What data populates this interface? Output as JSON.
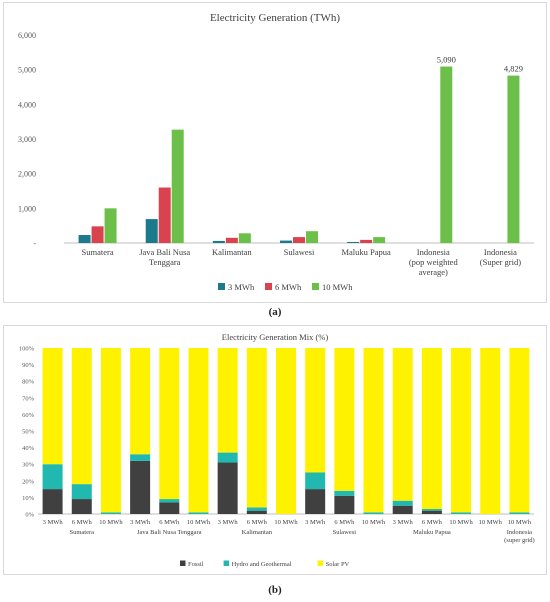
{
  "captions": {
    "a": "(a)",
    "b": "(b)"
  },
  "chart_data": [
    {
      "type": "bar",
      "title": "Electricity Generation (TWh)",
      "categories": [
        "Sumatera",
        "Java Bali Nusa Tenggara",
        "Kalimantan",
        "Sulawesi",
        "Maluku Papua",
        "Indonesia (pop weighted average)",
        "Indonesia (Super grid)"
      ],
      "category_lines": [
        [
          "Sumatera"
        ],
        [
          "Java Bali Nusa",
          "Tenggara"
        ],
        [
          "Kalimantan"
        ],
        [
          "Sulawesi"
        ],
        [
          "Maluku Papua"
        ],
        [
          "Indonesia",
          "(pop weighted",
          "average)"
        ],
        [
          "Indonesia",
          "(Super grid)"
        ]
      ],
      "series": [
        {
          "name": "3 MWh",
          "color": "#1b7a8c",
          "values": [
            230,
            690,
            60,
            70,
            30,
            null,
            null
          ]
        },
        {
          "name": "6 MWh",
          "color": "#d9434f",
          "values": [
            480,
            1600,
            150,
            170,
            90,
            null,
            null
          ]
        },
        {
          "name": "10 MWh",
          "color": "#6cc04a",
          "values": [
            1000,
            3270,
            280,
            340,
            170,
            5090,
            4829
          ]
        }
      ],
      "data_labels": [
        {
          "category": 5,
          "series": 2,
          "text": "5,090"
        },
        {
          "category": 6,
          "series": 2,
          "text": "4,829"
        }
      ],
      "y_ticks": [
        0,
        1000,
        2000,
        3000,
        4000,
        5000,
        6000
      ],
      "y_tick_labels": [
        "-",
        "1,000",
        "2,000",
        "3,000",
        "4,000",
        "5,000",
        "6,000"
      ],
      "ylim": [
        0,
        6000
      ],
      "legend": "bottom",
      "grid": false
    },
    {
      "type": "bar",
      "stacked": true,
      "title": "Electricity Generation Mix (%)",
      "bar_labels": [
        "3 MWh",
        "6 MWh",
        "10 MWh",
        "3 MWh",
        "6 MWh",
        "10 MWh",
        "3 MWh",
        "6 MWh",
        "10 MWh",
        "3 MWh",
        "6 MWh",
        "10 MWh",
        "3 MWh",
        "6 MWh",
        "10 MWh",
        "10 MWh",
        "10 MWh"
      ],
      "groups": [
        {
          "label": [
            "Sumatera"
          ],
          "bars": [
            0,
            2
          ]
        },
        {
          "label": [
            "Java Bali Nusa Tenggara"
          ],
          "bars": [
            3,
            5
          ]
        },
        {
          "label": [
            "Kalimantan"
          ],
          "bars": [
            6,
            8
          ]
        },
        {
          "label": [
            "Sulawesi"
          ],
          "bars": [
            9,
            11
          ]
        },
        {
          "label": [
            "Maluku Papua"
          ],
          "bars": [
            12,
            14
          ]
        },
        {
          "label": [
            "Indonesia",
            "(super grid)"
          ],
          "bars": [
            16,
            16
          ]
        }
      ],
      "series": [
        {
          "name": "Fossil",
          "color": "#404040",
          "values": [
            15,
            9,
            0,
            32,
            7,
            0,
            31,
            2,
            0,
            15,
            11,
            0,
            5,
            2,
            0,
            0,
            0
          ]
        },
        {
          "name": "Hydro and Geothermal",
          "color": "#21b8b0",
          "values": [
            15,
            9,
            1,
            4,
            2,
            1,
            6,
            2,
            0,
            10,
            3,
            1,
            3,
            1,
            1,
            0,
            1
          ]
        },
        {
          "name": "Solar PV",
          "color": "#fff200",
          "values": [
            70,
            82,
            99,
            64,
            91,
            99,
            63,
            96,
            100,
            75,
            86,
            99,
            92,
            97,
            99,
            100,
            99
          ]
        }
      ],
      "y_ticks": [
        0,
        10,
        20,
        30,
        40,
        50,
        60,
        70,
        80,
        90,
        100
      ],
      "y_tick_labels": [
        "0%",
        "10%",
        "20%",
        "30%",
        "40%",
        "50%",
        "60%",
        "70%",
        "80%",
        "90%",
        "100%"
      ],
      "ylim": [
        0,
        100
      ],
      "legend": "bottom",
      "grid": false
    }
  ]
}
